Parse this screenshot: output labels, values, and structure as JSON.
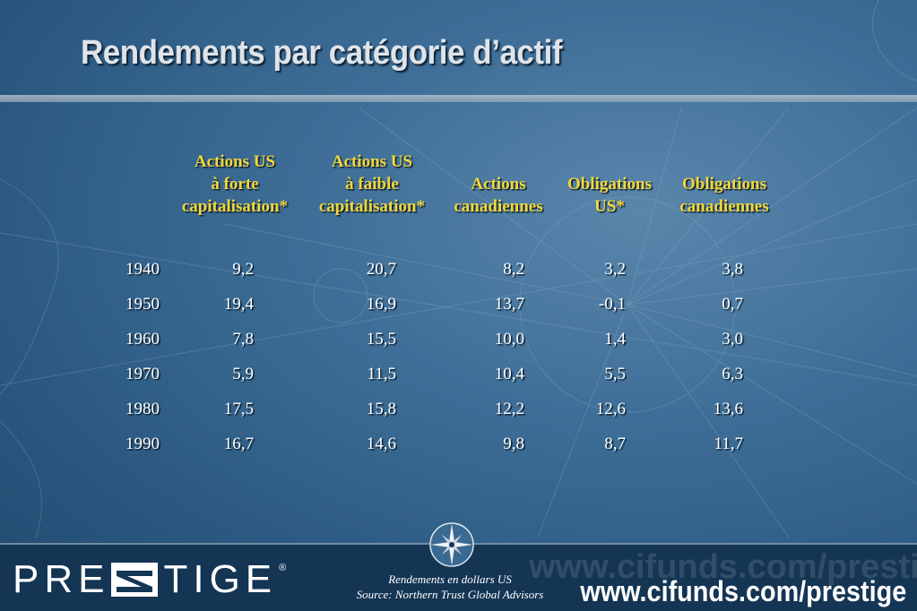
{
  "title": "Rendements par catégorie d’actif",
  "headers": [
    [
      "Actions US",
      "à forte",
      "capitalisation*"
    ],
    [
      "Actions US",
      "à faible",
      "capitalisation*"
    ],
    [
      "",
      "Actions",
      "canadiennes"
    ],
    [
      "",
      "Obligations",
      "US*"
    ],
    [
      "",
      "Obligations",
      "canadiennes"
    ]
  ],
  "rows": [
    {
      "year": "1940",
      "values": [
        "9,2",
        "20,7",
        "8,2",
        "3,2",
        "3,8"
      ]
    },
    {
      "year": "1950",
      "values": [
        "19,4",
        "16,9",
        "13,7",
        "-0,1",
        "0,7"
      ]
    },
    {
      "year": "1960",
      "values": [
        "7,8",
        "15,5",
        "10,0",
        "1,4",
        "3,0"
      ]
    },
    {
      "year": "1970",
      "values": [
        "5,9",
        "11,5",
        "10,4",
        "5,5",
        "6,3"
      ]
    },
    {
      "year": "1980",
      "values": [
        "17,5",
        "15,8",
        "12,2",
        "12,6",
        "13,6"
      ]
    },
    {
      "year": "1990",
      "values": [
        "16,7",
        "14,6",
        "9,8",
        "8,7",
        "11,7"
      ]
    }
  ],
  "footer": {
    "logo_left": "PRE",
    "logo_right": "TIGE",
    "logo_mark": "®",
    "note_line1": "Rendements en dollars US",
    "note_line2": "Source: Northern Trust Global Advisors",
    "url": "www.cifunds.com/prestige",
    "url_watermark": "www.cifunds.com/prestige"
  },
  "colors": {
    "background": "#2c5a82",
    "header_text": "#f3d63a",
    "body_text": "#ffffff",
    "footer": "#143554"
  }
}
